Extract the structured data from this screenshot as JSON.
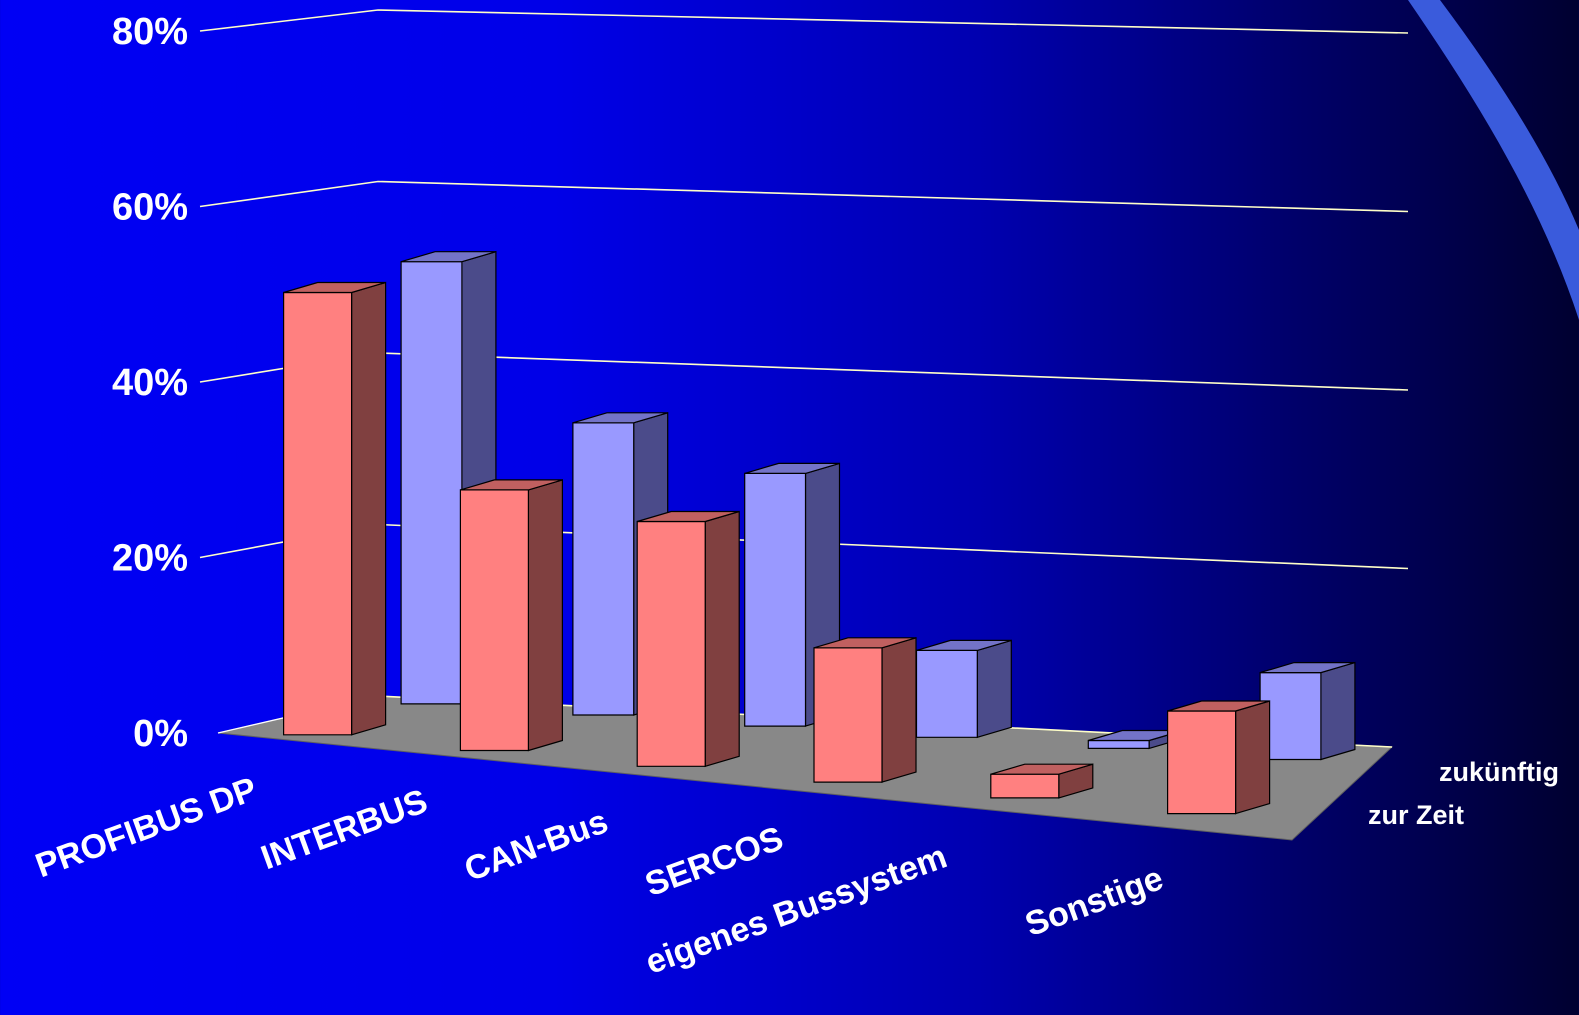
{
  "chart_data": {
    "type": "bar",
    "style": "3d-clustered",
    "categories": [
      "PROFIBUS DP",
      "INTERBUS",
      "CAN-Bus",
      "SERCOS",
      "eigenes Bussystem",
      "Sonstige"
    ],
    "series": [
      {
        "name": "zur Zeit",
        "values": [
          56,
          33,
          31,
          17,
          3,
          13
        ]
      },
      {
        "name": "zukünftig",
        "values": [
          56,
          37,
          32,
          11,
          1,
          11
        ]
      }
    ],
    "y_ticks": [
      "0%",
      "20%",
      "40%",
      "60%",
      "80%"
    ],
    "ylim": [
      0,
      80
    ],
    "grid": true,
    "legend": "right",
    "colors": {
      "zur Zeit": {
        "front": "#ff8080",
        "side": "#804040",
        "top": "#c06060"
      },
      "zukünftig": {
        "front": "#9999ff",
        "side": "#4b4b8a",
        "top": "#7373c8"
      },
      "floor": "#888888",
      "gridline": "#ffffc8"
    }
  }
}
